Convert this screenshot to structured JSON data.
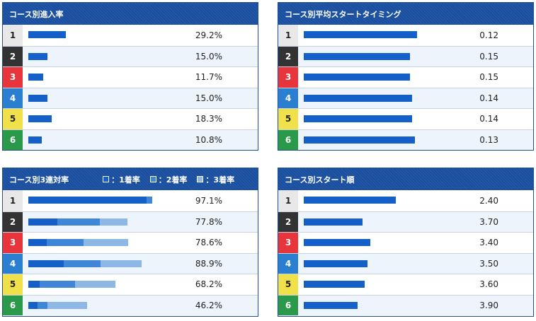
{
  "colors": {
    "header_bg": "#1a4fa0",
    "bar_1st": "#1560c8",
    "bar_2nd": "#3f86d6",
    "bar_3rd": "#8db8e6",
    "lane1": "#e8e8e8",
    "lane2": "#333333",
    "lane3": "#e8343b",
    "lane4": "#2a7fd0",
    "lane5": "#f0e04a",
    "lane6": "#2a9a4a"
  },
  "lanes": [
    "1",
    "2",
    "3",
    "4",
    "5",
    "6"
  ],
  "entry_rate": {
    "title": "コース別進入率",
    "rows": [
      {
        "lane": "1",
        "value": 29.2,
        "label": "29.2%"
      },
      {
        "lane": "2",
        "value": 15.0,
        "label": "15.0%"
      },
      {
        "lane": "3",
        "value": 11.7,
        "label": "11.7%"
      },
      {
        "lane": "4",
        "value": 15.0,
        "label": "15.0%"
      },
      {
        "lane": "5",
        "value": 18.3,
        "label": "18.3%"
      },
      {
        "lane": "6",
        "value": 10.8,
        "label": "10.8%"
      }
    ]
  },
  "avg_start_timing": {
    "title": "コース別平均スタートタイミング",
    "rows": [
      {
        "lane": "1",
        "value": 0.12,
        "label": "0.12"
      },
      {
        "lane": "2",
        "value": 0.15,
        "label": "0.15"
      },
      {
        "lane": "3",
        "value": 0.15,
        "label": "0.15"
      },
      {
        "lane": "4",
        "value": 0.14,
        "label": "0.14"
      },
      {
        "lane": "5",
        "value": 0.14,
        "label": "0.14"
      },
      {
        "lane": "6",
        "value": 0.13,
        "label": "0.13"
      }
    ]
  },
  "top3_rate": {
    "title": "コース別3連対率",
    "legend": [
      {
        "label": "：1着率",
        "color_key": "bar_1st"
      },
      {
        "label": "：2着率",
        "color_key": "bar_2nd"
      },
      {
        "label": "：3着率",
        "color_key": "bar_3rd"
      }
    ],
    "rows": [
      {
        "lane": "1",
        "first": 93.0,
        "second": 4.1,
        "third": 0.0,
        "label": "97.1%"
      },
      {
        "lane": "2",
        "first": 22.5,
        "second": 33.5,
        "third": 21.8,
        "label": "77.8%"
      },
      {
        "lane": "3",
        "first": 14.5,
        "second": 29.0,
        "third": 35.1,
        "label": "78.6%"
      },
      {
        "lane": "4",
        "first": 28.0,
        "second": 28.5,
        "third": 32.4,
        "label": "88.9%"
      },
      {
        "lane": "5",
        "first": 9.0,
        "second": 27.5,
        "third": 31.7,
        "label": "68.2%"
      },
      {
        "lane": "6",
        "first": 7.0,
        "second": 8.0,
        "third": 31.2,
        "label": "46.2%"
      }
    ]
  },
  "start_order": {
    "title": "コース別スタート順",
    "rows": [
      {
        "lane": "1",
        "value": 2.4,
        "label": "2.40"
      },
      {
        "lane": "2",
        "value": 3.7,
        "label": "3.70"
      },
      {
        "lane": "3",
        "value": 3.4,
        "label": "3.40"
      },
      {
        "lane": "4",
        "value": 3.5,
        "label": "3.50"
      },
      {
        "lane": "5",
        "value": 3.6,
        "label": "3.60"
      },
      {
        "lane": "6",
        "value": 3.9,
        "label": "3.90"
      }
    ]
  }
}
